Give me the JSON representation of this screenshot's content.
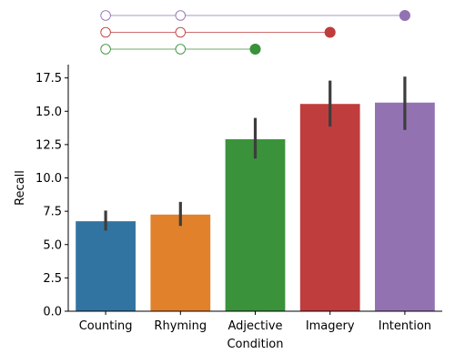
{
  "chart_data": {
    "type": "bar",
    "xlabel": "Condition",
    "ylabel": "Recall",
    "ylim": [
      0,
      18.5
    ],
    "yticks": [
      "0.0",
      "2.5",
      "5.0",
      "7.5",
      "10.0",
      "12.5",
      "15.0",
      "17.5"
    ],
    "grid": false,
    "categories": [
      "Counting",
      "Rhyming",
      "Adjective",
      "Imagery",
      "Intention"
    ],
    "values": [
      6.75,
      7.25,
      12.9,
      15.55,
      15.65
    ],
    "error_low": [
      6.05,
      6.4,
      11.45,
      13.85,
      13.6
    ],
    "error_high": [
      7.55,
      8.2,
      14.5,
      17.3,
      17.6
    ],
    "colors": [
      "#3274a1",
      "#e1812c",
      "#3a923a",
      "#c03d3e",
      "#9372b2"
    ],
    "significance": [
      {
        "color": "#9372b2",
        "open": [
          "Counting",
          "Rhyming"
        ],
        "filled": "Intention"
      },
      {
        "color": "#c03d3e",
        "open": [
          "Counting",
          "Rhyming"
        ],
        "filled": "Imagery"
      },
      {
        "color": "#3a923a",
        "open": [
          "Counting",
          "Rhyming"
        ],
        "filled": "Adjective"
      }
    ]
  }
}
